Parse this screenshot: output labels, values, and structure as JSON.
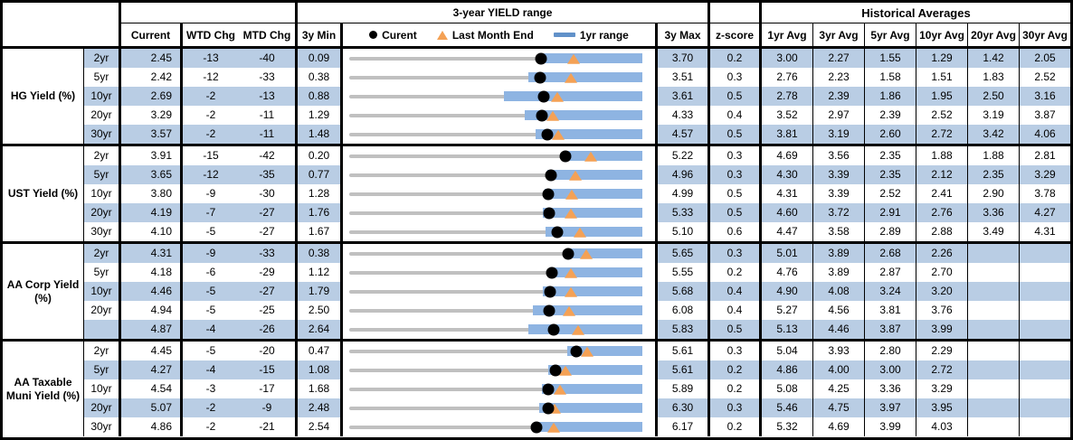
{
  "header": {
    "range_title": "3-year YIELD range",
    "hist_title": "Historical Averages",
    "cols": {
      "current": "Current",
      "wtd": "WTD Chg",
      "mtd": "MTD Chg",
      "min": "3y Min",
      "max": "3y Max",
      "z": "z-score"
    },
    "avg_cols": [
      "1yr Avg",
      "3yr Avg",
      "5yr Avg",
      "10yr Avg",
      "20yr Avg",
      "30yr Avg"
    ],
    "legend": {
      "current": "Curent",
      "last_month": "Last Month End",
      "range": "1yr range"
    }
  },
  "colors": {
    "row_stripe": "#B9CDE4",
    "range_bar": "#8EB4E2",
    "track_gray": "#C0C0C0",
    "current_marker": "#000000",
    "last_month_marker": "#F4A155",
    "legend_dash": "#6191C9",
    "border": "#000000"
  },
  "chart_data": {
    "type": "table",
    "title": "3-year YIELD range",
    "subtitle": "Historical Averages",
    "legend": [
      "Curent",
      "Last Month End",
      "1yr range"
    ],
    "legend_position": "top",
    "columns": [
      "Current",
      "WTD Chg",
      "MTD Chg",
      "3y Min",
      "3y Max",
      "z-score",
      "1yr Avg",
      "3yr Avg",
      "5yr Avg",
      "10yr Avg",
      "20yr Avg",
      "30yr Avg"
    ],
    "embedded_chart": "horizontal range bar per row: gray track spans 3y Min to 3y Max, blue bar is 1yr range, black dot = Current, orange triangle = Last Month End",
    "groups": [
      {
        "label": "HG Yield (%)",
        "rows": [
          {
            "tenor": "2yr",
            "current": "2.45",
            "wtd_chg": "-13",
            "mtd_chg": "-40",
            "min_3y": "0.09",
            "max_3y": "3.70",
            "z_score": "0.2",
            "avgs": [
              "3.00",
              "2.27",
              "1.55",
              "1.29",
              "1.42",
              "2.05"
            ],
            "range_1yr": [
              2.42,
              3.7
            ],
            "last_month_end": 2.85
          },
          {
            "tenor": "5yr",
            "current": "2.42",
            "wtd_chg": "-12",
            "mtd_chg": "-33",
            "min_3y": "0.38",
            "max_3y": "3.51",
            "z_score": "0.3",
            "avgs": [
              "2.76",
              "2.23",
              "1.58",
              "1.51",
              "1.83",
              "2.52"
            ],
            "range_1yr": [
              2.29,
              3.51
            ],
            "last_month_end": 2.75
          },
          {
            "tenor": "10yr",
            "current": "2.69",
            "wtd_chg": "-2",
            "mtd_chg": "-13",
            "min_3y": "0.88",
            "max_3y": "3.61",
            "z_score": "0.5",
            "avgs": [
              "2.78",
              "2.39",
              "1.86",
              "1.95",
              "2.50",
              "3.16"
            ],
            "range_1yr": [
              2.32,
              3.61
            ],
            "last_month_end": 2.82
          },
          {
            "tenor": "20yr",
            "current": "3.29",
            "wtd_chg": "-2",
            "mtd_chg": "-11",
            "min_3y": "1.29",
            "max_3y": "4.33",
            "z_score": "0.4",
            "avgs": [
              "3.52",
              "2.97",
              "2.39",
              "2.52",
              "3.19",
              "3.87"
            ],
            "range_1yr": [
              3.11,
              4.33
            ],
            "last_month_end": 3.4
          },
          {
            "tenor": "30yr",
            "current": "3.57",
            "wtd_chg": "-2",
            "mtd_chg": "-11",
            "min_3y": "1.48",
            "max_3y": "4.57",
            "z_score": "0.5",
            "avgs": [
              "3.81",
              "3.19",
              "2.60",
              "2.72",
              "3.42",
              "4.06"
            ],
            "range_1yr": [
              3.44,
              4.57
            ],
            "last_month_end": 3.68
          }
        ]
      },
      {
        "label": "UST Yield (%)",
        "rows": [
          {
            "tenor": "2yr",
            "current": "3.91",
            "wtd_chg": "-15",
            "mtd_chg": "-42",
            "min_3y": "0.20",
            "max_3y": "5.22",
            "z_score": "0.3",
            "avgs": [
              "4.69",
              "3.56",
              "2.35",
              "1.88",
              "1.88",
              "2.81"
            ],
            "range_1yr": [
              3.87,
              5.22
            ],
            "last_month_end": 4.33
          },
          {
            "tenor": "5yr",
            "current": "3.65",
            "wtd_chg": "-12",
            "mtd_chg": "-35",
            "min_3y": "0.77",
            "max_3y": "4.96",
            "z_score": "0.3",
            "avgs": [
              "4.30",
              "3.39",
              "2.35",
              "2.12",
              "2.35",
              "3.29"
            ],
            "range_1yr": [
              3.6,
              4.96
            ],
            "last_month_end": 4.0
          },
          {
            "tenor": "10yr",
            "current": "3.80",
            "wtd_chg": "-9",
            "mtd_chg": "-30",
            "min_3y": "1.28",
            "max_3y": "4.99",
            "z_score": "0.5",
            "avgs": [
              "4.31",
              "3.39",
              "2.52",
              "2.41",
              "2.90",
              "3.78"
            ],
            "range_1yr": [
              3.75,
              4.99
            ],
            "last_month_end": 4.1
          },
          {
            "tenor": "20yr",
            "current": "4.19",
            "wtd_chg": "-7",
            "mtd_chg": "-27",
            "min_3y": "1.76",
            "max_3y": "5.33",
            "z_score": "0.5",
            "avgs": [
              "4.60",
              "3.72",
              "2.91",
              "2.76",
              "3.36",
              "4.27"
            ],
            "range_1yr": [
              4.12,
              5.33
            ],
            "last_month_end": 4.46
          },
          {
            "tenor": "30yr",
            "current": "4.10",
            "wtd_chg": "-5",
            "mtd_chg": "-27",
            "min_3y": "1.67",
            "max_3y": "5.10",
            "z_score": "0.6",
            "avgs": [
              "4.47",
              "3.58",
              "2.89",
              "2.88",
              "3.49",
              "4.31"
            ],
            "range_1yr": [
              3.97,
              5.1
            ],
            "last_month_end": 4.37
          }
        ]
      },
      {
        "label": "AA Corp Yield (%)",
        "rows": [
          {
            "tenor": "2yr",
            "current": "4.31",
            "wtd_chg": "-9",
            "mtd_chg": "-33",
            "min_3y": "0.38",
            "max_3y": "5.65",
            "z_score": "0.3",
            "avgs": [
              "5.01",
              "3.89",
              "2.68",
              "2.26",
              "",
              ""
            ],
            "range_1yr": [
              4.28,
              5.65
            ],
            "last_month_end": 4.64
          },
          {
            "tenor": "5yr",
            "current": "4.18",
            "wtd_chg": "-6",
            "mtd_chg": "-29",
            "min_3y": "1.12",
            "max_3y": "5.55",
            "z_score": "0.2",
            "avgs": [
              "4.76",
              "3.89",
              "2.87",
              "2.70",
              "",
              ""
            ],
            "range_1yr": [
              4.14,
              5.55
            ],
            "last_month_end": 4.47
          },
          {
            "tenor": "10yr",
            "current": "4.46",
            "wtd_chg": "-5",
            "mtd_chg": "-27",
            "min_3y": "1.79",
            "max_3y": "5.68",
            "z_score": "0.4",
            "avgs": [
              "4.90",
              "4.08",
              "3.24",
              "3.20",
              "",
              ""
            ],
            "range_1yr": [
              4.36,
              5.68
            ],
            "last_month_end": 4.73
          },
          {
            "tenor": "20yr",
            "current": "4.94",
            "wtd_chg": "-5",
            "mtd_chg": "-25",
            "min_3y": "2.50",
            "max_3y": "6.08",
            "z_score": "0.4",
            "avgs": [
              "5.27",
              "4.56",
              "3.81",
              "3.76",
              "",
              ""
            ],
            "range_1yr": [
              4.74,
              6.08
            ],
            "last_month_end": 5.19
          },
          {
            "tenor": "",
            "current": "4.87",
            "wtd_chg": "-4",
            "mtd_chg": "-26",
            "min_3y": "2.64",
            "max_3y": "5.83",
            "z_score": "0.5",
            "avgs": [
              "5.13",
              "4.46",
              "3.87",
              "3.99",
              "",
              ""
            ],
            "range_1yr": [
              4.59,
              5.83
            ],
            "last_month_end": 5.13
          }
        ]
      },
      {
        "label": "AA Taxable Muni Yield (%)",
        "rows": [
          {
            "tenor": "2yr",
            "current": "4.45",
            "wtd_chg": "-5",
            "mtd_chg": "-20",
            "min_3y": "0.47",
            "max_3y": "5.61",
            "z_score": "0.3",
            "avgs": [
              "5.04",
              "3.93",
              "2.80",
              "2.29",
              "",
              ""
            ],
            "range_1yr": [
              4.3,
              5.61
            ],
            "last_month_end": 4.65
          },
          {
            "tenor": "5yr",
            "current": "4.27",
            "wtd_chg": "-4",
            "mtd_chg": "-15",
            "min_3y": "1.08",
            "max_3y": "5.61",
            "z_score": "0.2",
            "avgs": [
              "4.86",
              "4.00",
              "3.00",
              "2.72",
              "",
              ""
            ],
            "range_1yr": [
              4.16,
              5.61
            ],
            "last_month_end": 4.42
          },
          {
            "tenor": "10yr",
            "current": "4.54",
            "wtd_chg": "-3",
            "mtd_chg": "-17",
            "min_3y": "1.68",
            "max_3y": "5.89",
            "z_score": "0.2",
            "avgs": [
              "5.08",
              "4.25",
              "3.36",
              "3.29",
              "",
              ""
            ],
            "range_1yr": [
              4.45,
              5.89
            ],
            "last_month_end": 4.71
          },
          {
            "tenor": "20yr",
            "current": "5.07",
            "wtd_chg": "-2",
            "mtd_chg": "-9",
            "min_3y": "2.48",
            "max_3y": "6.30",
            "z_score": "0.3",
            "avgs": [
              "5.46",
              "4.75",
              "3.97",
              "3.95",
              "",
              ""
            ],
            "range_1yr": [
              4.96,
              6.3
            ],
            "last_month_end": 5.16
          },
          {
            "tenor": "30yr",
            "current": "4.86",
            "wtd_chg": "-2",
            "mtd_chg": "-21",
            "min_3y": "2.54",
            "max_3y": "6.17",
            "z_score": "0.2",
            "avgs": [
              "5.32",
              "4.69",
              "3.99",
              "4.03",
              "",
              ""
            ],
            "range_1yr": [
              4.82,
              6.17
            ],
            "last_month_end": 5.07
          }
        ]
      }
    ]
  }
}
